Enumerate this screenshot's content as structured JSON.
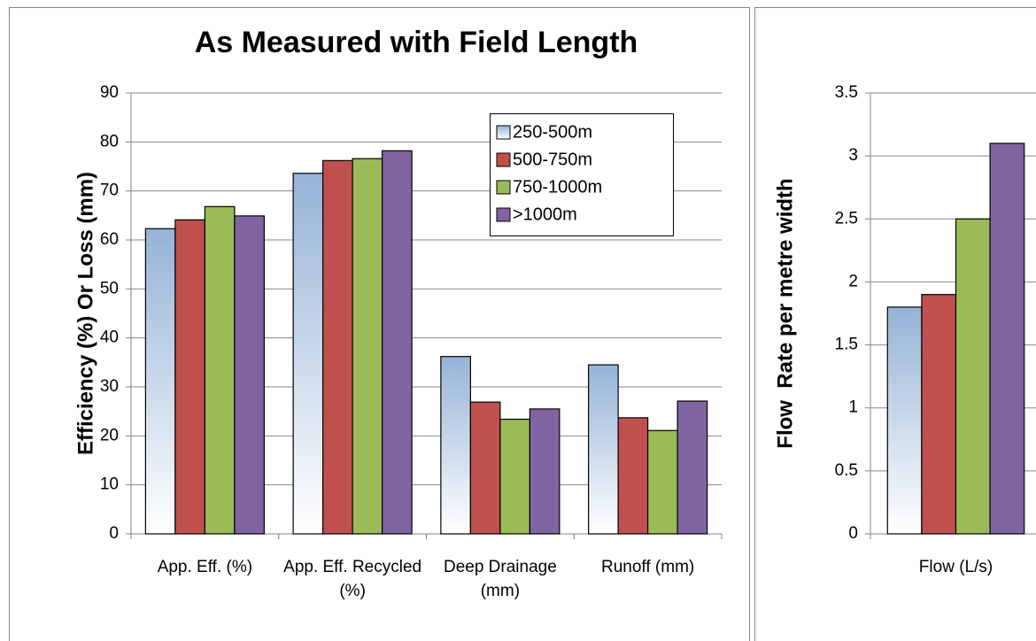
{
  "chart_data": [
    {
      "type": "bar",
      "title": "As Measured with Field Length",
      "ylabel": "Efficiency (%) Or Loss (mm)",
      "categories": [
        "App. Eff. (%)",
        "App. Eff. Recycled (%)",
        "Deep Drainage (mm)",
        "Runoff (mm)"
      ],
      "series": [
        {
          "name": "250-500m",
          "color": "#95b3d7",
          "values": [
            62.3,
            73.6,
            36.2,
            34.5
          ]
        },
        {
          "name": "500-750m",
          "color": "#c0504d",
          "values": [
            64.1,
            76.2,
            26.9,
            23.7
          ]
        },
        {
          "name": "750-1000m",
          "color": "#9bbb59",
          "values": [
            66.8,
            76.6,
            23.4,
            21.1
          ]
        },
        {
          "name": ">1000m",
          "color": "#8064a2",
          "values": [
            64.9,
            78.2,
            25.5,
            27.1
          ]
        }
      ],
      "ylim": [
        0,
        90
      ],
      "yticks": [
        0,
        10,
        20,
        30,
        40,
        50,
        60,
        70,
        80,
        90
      ],
      "grid": true,
      "legend": "top-right"
    },
    {
      "type": "bar",
      "ylabel": "Flow  Rate per metre width",
      "categories": [
        "Flow (L/s)"
      ],
      "series": [
        {
          "color": "#95b3d7",
          "values": [
            1.8
          ]
        },
        {
          "color": "#c0504d",
          "values": [
            1.9
          ]
        },
        {
          "color": "#9bbb59",
          "values": [
            2.5
          ]
        },
        {
          "color": "#8064a2",
          "values": [
            3.1
          ]
        }
      ],
      "ylim": [
        0,
        3.5
      ],
      "yticks": [
        0,
        0.5,
        1,
        1.5,
        2,
        2.5,
        3,
        3.5
      ],
      "grid": true
    }
  ]
}
